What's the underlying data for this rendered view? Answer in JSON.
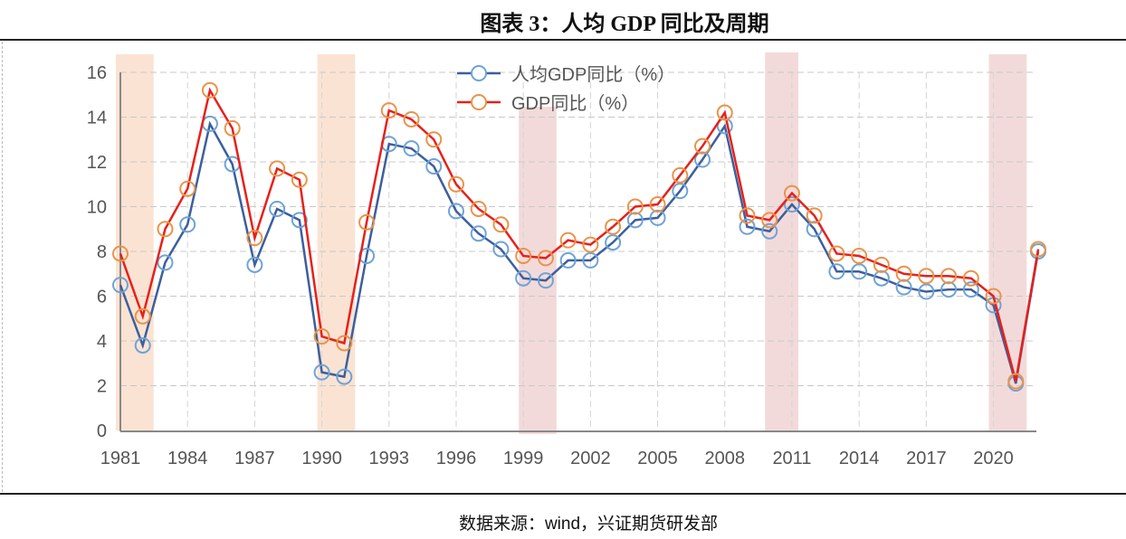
{
  "title": "图表 3：人均 GDP 同比及周期",
  "source": "数据来源：wind，兴证期货研发部",
  "chart_data": {
    "type": "line",
    "title": "图表 3：人均 GDP 同比及周期",
    "xlabel": "",
    "ylabel": "",
    "ylim": [
      0,
      16
    ],
    "yticks": [
      "0",
      "2",
      "4",
      "6",
      "8",
      "10",
      "12",
      "14",
      "16"
    ],
    "x": [
      1981,
      1982,
      1983,
      1984,
      1985,
      1986,
      1987,
      1988,
      1989,
      1990,
      1991,
      1992,
      1993,
      1994,
      1995,
      1996,
      1997,
      1998,
      1999,
      2000,
      2001,
      2002,
      2003,
      2004,
      2005,
      2006,
      2007,
      2008,
      2009,
      2010,
      2011,
      2012,
      2013,
      2014,
      2015,
      2016,
      2017,
      2018,
      2019,
      2020,
      2021,
      2022
    ],
    "xticks": [
      "1981",
      "1984",
      "1987",
      "1990",
      "1993",
      "1996",
      "1999",
      "2002",
      "2005",
      "2008",
      "2011",
      "2014",
      "2017",
      "2020"
    ],
    "grid": true,
    "legend_position": "top-center",
    "shaded_periods": [
      {
        "start": 1981,
        "end": 1982,
        "color": "#fbe3d3"
      },
      {
        "start": 1990,
        "end": 1991,
        "color": "#fbe3d3"
      },
      {
        "start": 1999,
        "end": 2000,
        "color": "#f3dada"
      },
      {
        "start": 2010,
        "end": 2010.8,
        "color": "#f3dada"
      },
      {
        "start": 2020,
        "end": 2021,
        "color": "#f3dada"
      }
    ],
    "series": [
      {
        "name": "人均GDP同比（%）",
        "color": "#3c5f9e",
        "marker": "#6fa3d6",
        "values": [
          6.5,
          3.8,
          7.5,
          9.2,
          13.7,
          11.9,
          7.4,
          9.9,
          9.4,
          2.6,
          2.4,
          7.8,
          12.8,
          12.6,
          11.8,
          9.8,
          8.8,
          8.1,
          6.8,
          6.7,
          7.6,
          7.6,
          8.4,
          9.4,
          9.5,
          10.7,
          12.1,
          13.6,
          9.1,
          8.9,
          10.1,
          9.0,
          7.1,
          7.1,
          6.8,
          6.4,
          6.2,
          6.3,
          6.3,
          5.6,
          2.1,
          8.0
        ]
      },
      {
        "name": "GDP同比（%）",
        "color": "#e8201a",
        "marker": "#e8944a",
        "values": [
          7.9,
          5.1,
          9.0,
          10.8,
          15.2,
          13.5,
          8.6,
          11.7,
          11.2,
          4.2,
          3.9,
          9.3,
          14.3,
          13.9,
          13.0,
          11.0,
          9.9,
          9.2,
          7.8,
          7.7,
          8.5,
          8.3,
          9.1,
          10.0,
          10.1,
          11.4,
          12.7,
          14.2,
          9.6,
          9.4,
          10.6,
          9.6,
          7.9,
          7.8,
          7.4,
          7.0,
          6.9,
          6.9,
          6.8,
          6.0,
          2.2,
          8.1
        ]
      }
    ]
  }
}
